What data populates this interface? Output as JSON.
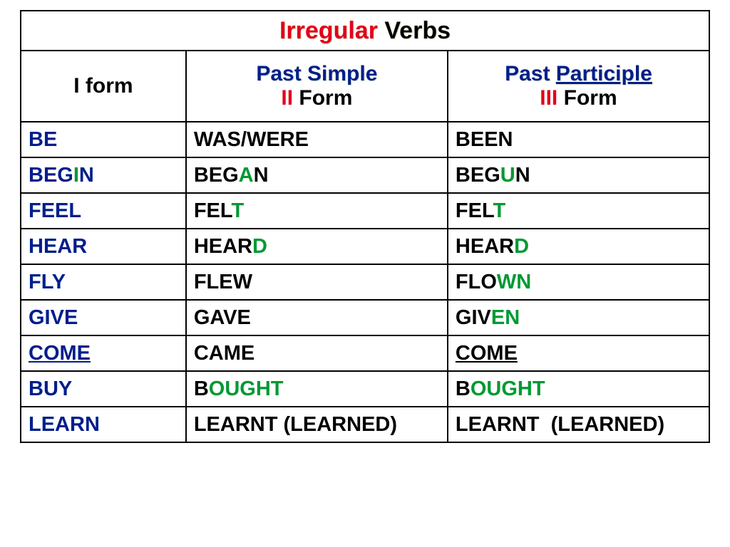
{
  "title": {
    "parts": [
      {
        "text": "Irregular",
        "color": "#e2001a",
        "shadow": "1px 1px 0 #d8e0c0"
      },
      {
        "text": " Verbs",
        "color": "#000000",
        "shadow": "1px 1px 0 #d8e0c0"
      }
    ]
  },
  "headers": {
    "col0": {
      "top": [],
      "bottom": [
        {
          "text": "I",
          "color": "#000000"
        },
        {
          "text": " form",
          "color": "#000000"
        }
      ]
    },
    "col1": {
      "top": [
        {
          "text": "Past Simple",
          "color": "#001e8c",
          "underline": false
        }
      ],
      "bottom": [
        {
          "text": "II",
          "color": "#e2001a"
        },
        {
          "text": " Form",
          "color": "#000000"
        }
      ]
    },
    "col2": {
      "top": [
        {
          "text": "Past ",
          "color": "#001e8c",
          "underline": false
        },
        {
          "text": "Participle",
          "color": "#001e8c",
          "underline": true
        }
      ],
      "bottom": [
        {
          "text": "III",
          "color": "#e2001a"
        },
        {
          "text": " Form",
          "color": "#000000"
        }
      ]
    }
  },
  "rows": [
    {
      "c0": [
        {
          "text": "BE",
          "color": "#001e8c",
          "underline": false
        }
      ],
      "c1": [
        {
          "text": "WAS/WERE",
          "color": "#000000"
        }
      ],
      "c2": [
        {
          "text": "BEEN",
          "color": "#000000"
        }
      ]
    },
    {
      "c0": [
        {
          "text": "BEG",
          "color": "#001e8c"
        },
        {
          "text": "I",
          "color": "#009933"
        },
        {
          "text": "N",
          "color": "#001e8c"
        }
      ],
      "c1": [
        {
          "text": "BEG",
          "color": "#000000"
        },
        {
          "text": "A",
          "color": "#009933"
        },
        {
          "text": "N",
          "color": "#000000"
        }
      ],
      "c2": [
        {
          "text": "BEG",
          "color": "#000000"
        },
        {
          "text": "U",
          "color": "#009933"
        },
        {
          "text": "N",
          "color": "#000000"
        }
      ]
    },
    {
      "c0": [
        {
          "text": "FEEL",
          "color": "#001e8c"
        }
      ],
      "c1": [
        {
          "text": "FEL",
          "color": "#000000"
        },
        {
          "text": "T",
          "color": "#009933"
        }
      ],
      "c2": [
        {
          "text": "FEL",
          "color": "#000000"
        },
        {
          "text": "T",
          "color": "#009933"
        }
      ]
    },
    {
      "c0": [
        {
          "text": "HEAR",
          "color": "#001e8c"
        }
      ],
      "c1": [
        {
          "text": "HEAR",
          "color": "#000000"
        },
        {
          "text": "D",
          "color": "#009933"
        }
      ],
      "c2": [
        {
          "text": "HEAR",
          "color": "#000000"
        },
        {
          "text": "D",
          "color": "#009933"
        }
      ]
    },
    {
      "c0": [
        {
          "text": "FLY",
          "color": "#001e8c"
        }
      ],
      "c1": [
        {
          "text": "FLEW",
          "color": "#000000"
        }
      ],
      "c2": [
        {
          "text": "FLO",
          "color": "#000000"
        },
        {
          "text": "WN",
          "color": "#009933"
        }
      ]
    },
    {
      "c0": [
        {
          "text": "GIVE",
          "color": "#001e8c"
        }
      ],
      "c1": [
        {
          "text": "GAVE",
          "color": "#000000"
        }
      ],
      "c2": [
        {
          "text": "GIV",
          "color": "#000000"
        },
        {
          "text": "EN",
          "color": "#009933"
        }
      ]
    },
    {
      "c0": [
        {
          "text": "COME",
          "color": "#001e8c",
          "underline": true
        }
      ],
      "c1": [
        {
          "text": "CAME",
          "color": "#000000"
        }
      ],
      "c2": [
        {
          "text": "COME",
          "color": "#000000",
          "underline": true
        }
      ]
    },
    {
      "c0": [
        {
          "text": "BUY",
          "color": "#001e8c"
        }
      ],
      "c1": [
        {
          "text": "B",
          "color": "#000000"
        },
        {
          "text": "OUGHT",
          "color": "#009933"
        }
      ],
      "c2": [
        {
          "text": "B",
          "color": "#000000"
        },
        {
          "text": "OUGHT",
          "color": "#009933"
        }
      ]
    },
    {
      "c0": [
        {
          "text": "LEARN",
          "color": "#001e8c"
        }
      ],
      "c1": [
        {
          "text": "LEARNT (LEARNED)",
          "color": "#000000"
        }
      ],
      "c2": [
        {
          "text": "LEARNT  (LEARNED)",
          "color": "#000000"
        }
      ]
    }
  ],
  "style": {
    "border_color": "#000000",
    "background_color": "#ffffff",
    "title_fontsize": 34,
    "header_fontsize": 30,
    "body_fontsize": 29,
    "col_widths_pct": [
      24,
      38,
      38
    ]
  }
}
